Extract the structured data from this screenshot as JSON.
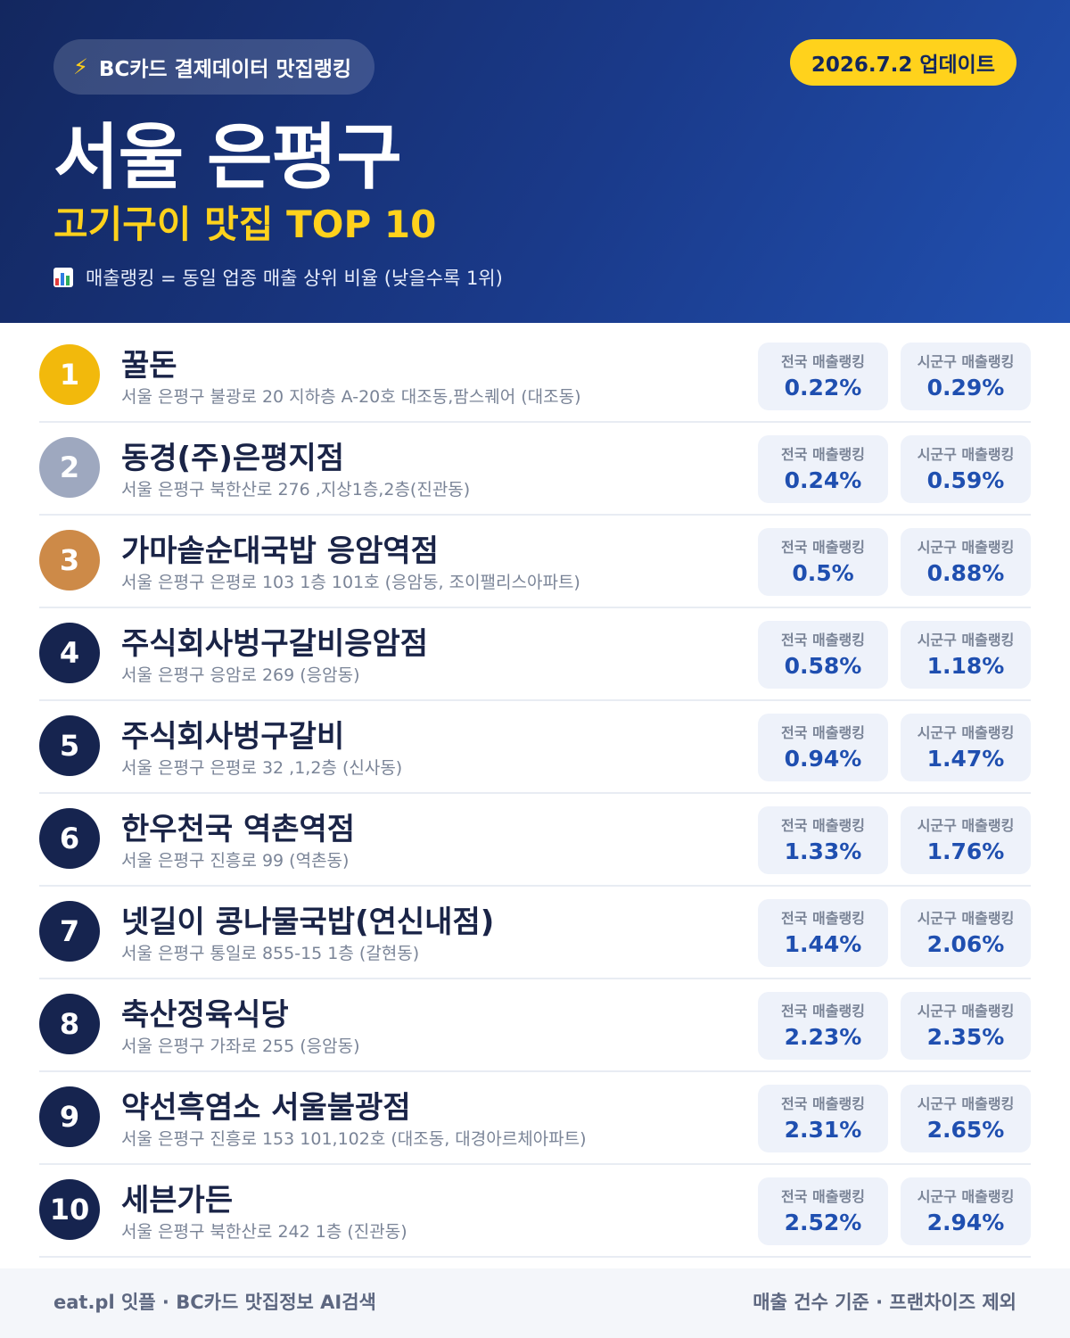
{
  "header": {
    "source_label": "BC카드 결제데이터 맛집랭킹",
    "update_label": "2026.7.2 업데이트",
    "title": "서울 은평구",
    "subtitle": "고기구이 맛집 TOP 10",
    "note": "매출랭킹 = 동일 업종 매출 상위 비율 (낮을수록 1위)",
    "source_icon": "lightning-bolt-icon",
    "note_icon": "bar-chart-icon"
  },
  "stat_labels": {
    "national": "전국 매출랭킹",
    "regional": "시군구 매출랭킹"
  },
  "restaurants": [
    {
      "rank": "1",
      "name": "꿀돈",
      "address": "서울 은평구 불광로 20 지하층 A-20호 대조동,팜스퀘어 (대조동)",
      "national": "0.22%",
      "regional": "0.29%"
    },
    {
      "rank": "2",
      "name": "동경(주)은평지점",
      "address": "서울 은평구 북한산로 276 ,지상1층,2층(진관동)",
      "national": "0.24%",
      "regional": "0.59%"
    },
    {
      "rank": "3",
      "name": "가마솥순대국밥 응암역점",
      "address": "서울 은평구 은평로 103 1층 101호 (응암동, 조이팰리스아파트)",
      "national": "0.5%",
      "regional": "0.88%"
    },
    {
      "rank": "4",
      "name": "주식회사벙구갈비응암점",
      "address": "서울 은평구 응암로 269 (응암동)",
      "national": "0.58%",
      "regional": "1.18%"
    },
    {
      "rank": "5",
      "name": "주식회사벙구갈비",
      "address": "서울 은평구 은평로 32 ,1,2층 (신사동)",
      "national": "0.94%",
      "regional": "1.47%"
    },
    {
      "rank": "6",
      "name": "한우천국 역촌역점",
      "address": "서울 은평구 진흥로 99 (역촌동)",
      "national": "1.33%",
      "regional": "1.76%"
    },
    {
      "rank": "7",
      "name": "넷길이 콩나물국밥(연신내점)",
      "address": "서울 은평구 통일로 855-15 1층 (갈현동)",
      "national": "1.44%",
      "regional": "2.06%"
    },
    {
      "rank": "8",
      "name": "축산정육식당",
      "address": "서울 은평구 가좌로 255 (응암동)",
      "national": "2.23%",
      "regional": "2.35%"
    },
    {
      "rank": "9",
      "name": "약선흑염소 서울불광점",
      "address": "서울 은평구 진흥로 153 101,102호 (대조동, 대경아르체아파트)",
      "national": "2.31%",
      "regional": "2.65%"
    },
    {
      "rank": "10",
      "name": "세븐가든",
      "address": "서울 은평구 북한산로 242 1층 (진관동)",
      "national": "2.52%",
      "regional": "2.94%"
    }
  ],
  "footer": {
    "left": "eat.pl 잇플 · BC카드 맛집정보 AI검색",
    "right": "매출 건수 기준 · 프랜차이즈 제외"
  },
  "colors": {
    "header_bg": "#1a3a8a",
    "accent_yellow": "#ffd21c",
    "rank_gold": "#f2b90c",
    "rank_silver": "#9ea8bf",
    "rank_bronze": "#cd8a48",
    "rank_default": "#16244f",
    "stat_value": "#1f4fb0"
  }
}
